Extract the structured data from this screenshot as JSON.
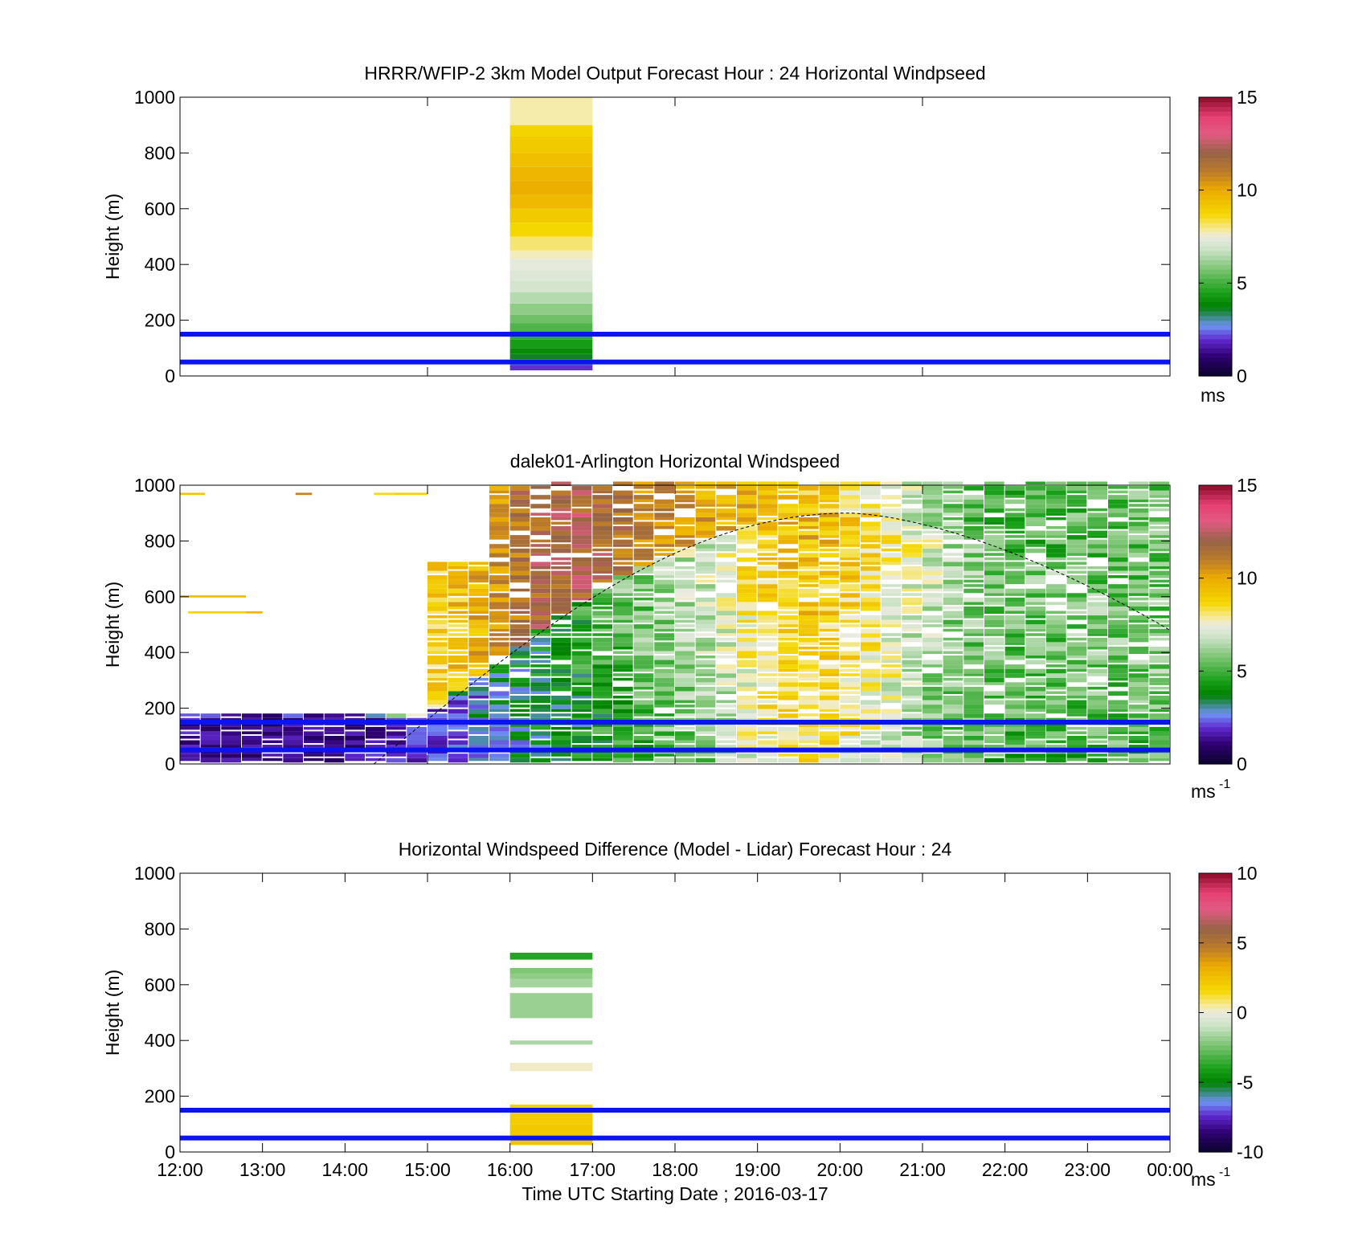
{
  "chart_data": [
    {
      "type": "heatmap",
      "id": "model",
      "title": "HRRR/WFIP-2 3km Model Output   Forecast Hour : 24 Horizontal Windpseed",
      "ylabel": "Height (m)",
      "xlabel": "",
      "xlim": [
        12,
        24
      ],
      "ylim": [
        0,
        1000
      ],
      "yticks": [
        0,
        200,
        400,
        600,
        800,
        1000
      ],
      "xticks": [
        12,
        15,
        18,
        21,
        24
      ],
      "xtick_labels": [],
      "colorbar": {
        "min": 0,
        "max": 15,
        "ticks": [
          0,
          5,
          10,
          15
        ],
        "unit": "ms",
        "unit_sup": "",
        "scheme": "speed"
      },
      "hlines": [
        50,
        150
      ],
      "blocks": [
        {
          "t0": 16,
          "t1": 17,
          "profile": [
            [
              20,
              40,
              2.0
            ],
            [
              40,
              60,
              3.0
            ],
            [
              60,
              80,
              3.6
            ],
            [
              80,
              100,
              4.0
            ],
            [
              100,
              130,
              4.4
            ],
            [
              130,
              160,
              4.8
            ],
            [
              160,
              190,
              5.2
            ],
            [
              190,
              220,
              5.6
            ],
            [
              220,
              260,
              6.0
            ],
            [
              260,
              300,
              6.5
            ],
            [
              300,
              340,
              7.0
            ],
            [
              340,
              380,
              7.2
            ],
            [
              380,
              420,
              7.4
            ],
            [
              420,
              450,
              7.7
            ],
            [
              450,
              500,
              8.1
            ],
            [
              500,
              550,
              8.7
            ],
            [
              550,
              600,
              9.1
            ],
            [
              600,
              650,
              9.6
            ],
            [
              650,
              700,
              9.9
            ],
            [
              700,
              750,
              9.7
            ],
            [
              750,
              800,
              9.4
            ],
            [
              800,
              860,
              9.1
            ],
            [
              860,
              900,
              8.8
            ],
            [
              900,
              1000,
              7.8
            ]
          ]
        }
      ]
    },
    {
      "type": "heatmap",
      "id": "lidar",
      "title": "dalek01-Arlington  Horizontal Windspeed",
      "ylabel": "Height (m)",
      "xlabel": "",
      "xlim": [
        12,
        24
      ],
      "ylim": [
        0,
        1000
      ],
      "yticks": [
        0,
        200,
        400,
        600,
        800,
        1000
      ],
      "xticks": [
        12,
        15,
        18,
        21,
        24
      ],
      "xtick_labels": [],
      "colorbar": {
        "min": 0,
        "max": 15,
        "ticks": [
          0,
          5,
          10,
          15
        ],
        "unit": "ms",
        "unit_sup": "-1",
        "scheme": "speed"
      },
      "hlines": [
        50,
        150
      ],
      "boundary_curve": {
        "start": 14.35,
        "peak_t": 20.1,
        "peak_h": 900,
        "end_h": 480
      },
      "data_note_columns_speed_by_time": [
        [
          12.0,
          1.5,
          0.0
        ],
        [
          13.0,
          1.2,
          0.0
        ],
        [
          14.0,
          1.3,
          0.0
        ],
        [
          14.5,
          1.6,
          4.0
        ],
        [
          15.0,
          2.0,
          8.5
        ],
        [
          15.5,
          2.4,
          9.5
        ],
        [
          16.0,
          3.0,
          11.0
        ],
        [
          16.5,
          3.4,
          12.0
        ],
        [
          17.0,
          4.0,
          12.0
        ],
        [
          17.5,
          4.8,
          11.0
        ],
        [
          18.0,
          5.5,
          10.5
        ],
        [
          18.5,
          6.0,
          10.0
        ],
        [
          19.0,
          7.5,
          9.5
        ],
        [
          19.5,
          8.4,
          9.0
        ],
        [
          20.0,
          8.0,
          8.5
        ],
        [
          20.5,
          7.2,
          8.0
        ],
        [
          21.0,
          6.0,
          6.5
        ],
        [
          21.5,
          5.2,
          5.6
        ],
        [
          22.0,
          4.8,
          5.0
        ],
        [
          23.0,
          5.0,
          5.3
        ],
        [
          23.75,
          5.2,
          5.5
        ]
      ]
    },
    {
      "type": "heatmap",
      "id": "diff",
      "title": "Horizontal Windspeed Difference (Model - Lidar) Forecast Hour : 24",
      "ylabel": "Height (m)",
      "xlabel": "Time UTC  Starting Date ; 2016-03-17",
      "xlim": [
        12,
        24
      ],
      "ylim": [
        0,
        1000
      ],
      "yticks": [
        0,
        200,
        400,
        600,
        800,
        1000
      ],
      "xticks": [
        12,
        13,
        14,
        15,
        16,
        17,
        18,
        19,
        20,
        21,
        22,
        23,
        24
      ],
      "xtick_labels": [
        "12:00",
        "13:00",
        "14:00",
        "15:00",
        "16:00",
        "17:00",
        "18:00",
        "19:00",
        "20:00",
        "21:00",
        "22:00",
        "23:00",
        "00:00"
      ],
      "colorbar": {
        "min": -10,
        "max": 10,
        "ticks": [
          -10,
          -5,
          0,
          5,
          10
        ],
        "unit": "ms",
        "unit_sup": "-1",
        "scheme": "diff"
      },
      "hlines": [
        50,
        150
      ],
      "blocks": [
        {
          "t0": 16,
          "t1": 17,
          "profile": [
            [
              25,
              60,
              2.4
            ],
            [
              60,
              100,
              2.2
            ],
            [
              100,
              140,
              2.0
            ],
            [
              140,
              170,
              1.8
            ],
            [
              290,
              320,
              0.2
            ],
            [
              385,
              400,
              -1.5
            ],
            [
              480,
              570,
              -1.8
            ],
            [
              590,
              620,
              -1.6
            ],
            [
              620,
              640,
              -2.0
            ],
            [
              640,
              660,
              -2.3
            ],
            [
              690,
              715,
              -3.8
            ]
          ]
        }
      ]
    }
  ]
}
